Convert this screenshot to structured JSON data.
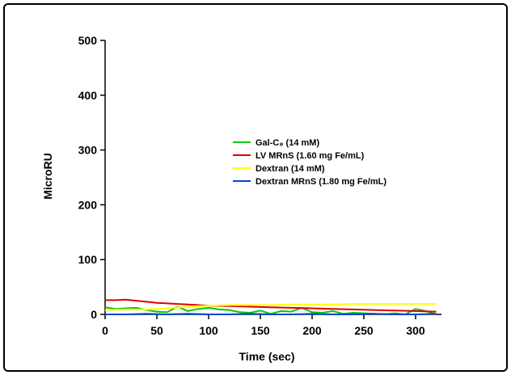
{
  "chart_data": {
    "type": "line",
    "title": "",
    "xlabel": "Time (sec)",
    "ylabel": "MicroRU",
    "xlim": [
      0,
      325
    ],
    "ylim": [
      0,
      500
    ],
    "xticks": [
      0,
      50,
      100,
      150,
      200,
      250,
      300
    ],
    "yticks": [
      0,
      100,
      200,
      300,
      400,
      500
    ],
    "grid": false,
    "legend_position": "center-right",
    "series": [
      {
        "name": "Gal-C₈ (14 mM)",
        "color": "#00cc00",
        "x": [
          0,
          10,
          20,
          30,
          40,
          50,
          60,
          70,
          80,
          90,
          100,
          110,
          120,
          130,
          140,
          150,
          160,
          170,
          180,
          190,
          200,
          210,
          220,
          230,
          240,
          250,
          260,
          270,
          280,
          290,
          300,
          310,
          320
        ],
        "y": [
          13,
          10,
          11,
          12,
          8,
          5,
          4,
          14,
          6,
          10,
          12,
          9,
          8,
          4,
          3,
          7,
          1,
          6,
          5,
          12,
          4,
          3,
          6,
          1,
          3,
          2,
          1,
          0,
          2,
          0,
          10,
          6,
          0
        ]
      },
      {
        "name": "LV MRnS (1.60 mg Fe/mL)",
        "color": "#e00000",
        "x": [
          0,
          10,
          20,
          30,
          40,
          50,
          60,
          70,
          80,
          90,
          100,
          120,
          140,
          160,
          180,
          200,
          220,
          240,
          260,
          280,
          300,
          320
        ],
        "y": [
          26,
          26,
          27,
          25,
          23,
          21,
          20,
          19,
          18,
          17,
          16,
          15,
          14,
          13,
          12,
          11,
          10,
          9,
          8,
          7,
          6,
          5
        ]
      },
      {
        "name": "Dextran (14 mM)",
        "color": "#ffff00",
        "x": [
          0,
          20,
          40,
          60,
          80,
          100,
          120,
          140,
          160,
          180,
          200,
          220,
          240,
          260,
          280,
          300,
          320
        ],
        "y": [
          8,
          9,
          9,
          11,
          14,
          16,
          17,
          17,
          17,
          18,
          18,
          18,
          19,
          19,
          19,
          19,
          19
        ]
      },
      {
        "name": "Dextran MRnS (1.80 mg Fe/mL)",
        "color": "#0044dd",
        "x": [
          0,
          20,
          40,
          60,
          80,
          100,
          120,
          140,
          160,
          180,
          200,
          220,
          240,
          260,
          280,
          300,
          320
        ],
        "y": [
          0,
          0,
          1,
          0,
          1,
          0,
          0,
          1,
          0,
          0,
          1,
          0,
          0,
          1,
          0,
          0,
          1
        ]
      }
    ]
  }
}
